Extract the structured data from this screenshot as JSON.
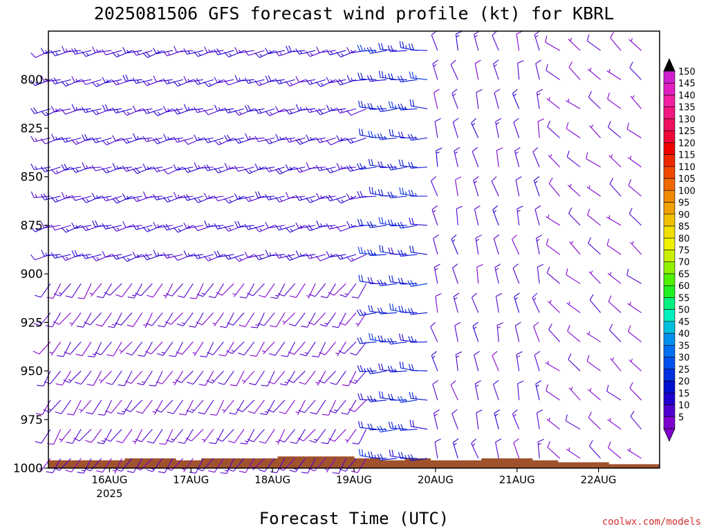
{
  "chart_data": {
    "type": "wind-barb-profile",
    "title": "2025081506 GFS forecast wind profile (kt) for KBRL",
    "xlabel": "Forecast Time (UTC)",
    "credit": "coolwx.com/models",
    "x_ticks": [
      {
        "label": "16AUG",
        "sub": "2025",
        "hour": 18
      },
      {
        "label": "17AUG",
        "sub": "",
        "hour": 42
      },
      {
        "label": "18AUG",
        "sub": "",
        "hour": 66
      },
      {
        "label": "19AUG",
        "sub": "",
        "hour": 90
      },
      {
        "label": "20AUG",
        "sub": "",
        "hour": 114
      },
      {
        "label": "21AUG",
        "sub": "",
        "hour": 138
      },
      {
        "label": "22AUG",
        "sub": "",
        "hour": 162
      }
    ],
    "y_ticks": [
      800,
      825,
      850,
      875,
      900,
      925,
      950,
      975,
      1000
    ],
    "ylim": [
      1000,
      775
    ],
    "xlim_hours": [
      0,
      180
    ],
    "pressure_levels": [
      785,
      800,
      815,
      830,
      845,
      860,
      875,
      890,
      905,
      920,
      935,
      950,
      965,
      980,
      995
    ],
    "time_steps": {
      "phase1": {
        "start": 0,
        "end": 96,
        "step": 3
      },
      "phase2": {
        "start": 96,
        "end": 114,
        "step": 3
      },
      "phase3": {
        "start": 114,
        "end": 180,
        "step": 6
      }
    },
    "wind_regimes": [
      {
        "hours": [
          0,
          96
        ],
        "levels": "upper",
        "dir_deg": 255,
        "speed_kt": 15
      },
      {
        "hours": [
          0,
          96
        ],
        "levels": "lower",
        "dir_deg": 215,
        "speed_kt": 10
      },
      {
        "hours": [
          96,
          114
        ],
        "levels": "all",
        "dir_deg": 270,
        "speed_kt": 22
      },
      {
        "hours": [
          114,
          150
        ],
        "levels": "all",
        "dir_deg": 345,
        "speed_kt": 12
      },
      {
        "hours": [
          150,
          180
        ],
        "levels": "all",
        "dir_deg": 310,
        "speed_kt": 8
      }
    ],
    "surface_pressure": [
      996,
      996,
      996,
      995,
      995,
      996,
      995,
      995,
      995,
      994,
      994,
      994,
      995,
      996,
      995,
      996,
      996,
      995,
      995,
      996,
      997,
      997,
      998,
      998
    ],
    "colorbar": {
      "labels": [
        150,
        145,
        140,
        135,
        130,
        125,
        120,
        115,
        110,
        105,
        100,
        95,
        90,
        85,
        80,
        75,
        70,
        65,
        60,
        55,
        50,
        45,
        40,
        35,
        30,
        25,
        20,
        15,
        10,
        5
      ],
      "colors": [
        "#d020d0",
        "#e020c0",
        "#f020a0",
        "#f01880",
        "#f01060",
        "#f00838",
        "#f00000",
        "#f02800",
        "#f04800",
        "#f06800",
        "#f08800",
        "#f0a000",
        "#f0c000",
        "#f0e000",
        "#f0f000",
        "#c8f000",
        "#90f000",
        "#50f000",
        "#20f020",
        "#00f080",
        "#00f0c0",
        "#00c0e0",
        "#0090f0",
        "#0070f0",
        "#0050f0",
        "#0030e0",
        "#0010d0",
        "#2000d0",
        "#5000d0",
        "#8000d0"
      ],
      "top_color": "#000000",
      "bottom_color": "#8000d0"
    },
    "colors": {
      "ground": "#a0522d",
      "frame": "#000000"
    }
  }
}
